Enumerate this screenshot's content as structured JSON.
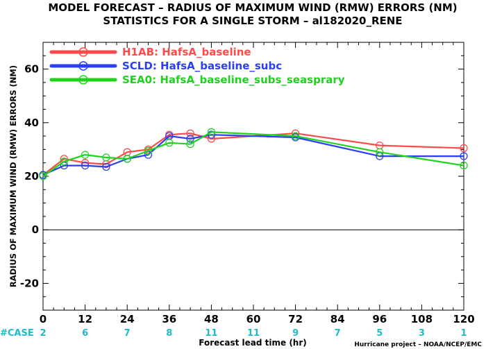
{
  "title_line1": "MODEL FORECAST – RADIUS OF MAXIMUM WIND (RMW) ERRORS (NM)",
  "title_line2": "STATISTICS FOR A SINGLE STORM – al182020_RENE",
  "credit": "Hurricane project – NOAA/NCEP/EMC",
  "case_label": "#CASE",
  "colors": {
    "H1AB": "#ff4a4a",
    "SCLD": "#2a3ff0",
    "SEA0": "#1fd21f",
    "case": "#1bbcc8"
  },
  "chart_data": {
    "type": "line",
    "title": "MODEL FORECAST – RADIUS OF MAXIMUM WIND (RMW) ERRORS (NM)",
    "subtitle": "STATISTICS FOR A SINGLE STORM – al182020_RENE",
    "xlabel": "Forecast lead time (hr)",
    "ylabel": "RADIUS OF MAXIMUM WIND (RMW) ERRORS (NM)",
    "xlim": [
      0,
      120
    ],
    "ylim": [
      -30,
      70
    ],
    "xticks": [
      0,
      12,
      24,
      36,
      48,
      60,
      72,
      84,
      96,
      108,
      120
    ],
    "yticks": [
      -20,
      0,
      20,
      40,
      60
    ],
    "zero_line": true,
    "grid": false,
    "legend_position": "top-left",
    "case_counts": [
      {
        "x": 0,
        "n": "2"
      },
      {
        "x": 12,
        "n": "6"
      },
      {
        "x": 24,
        "n": "7"
      },
      {
        "x": 36,
        "n": "8"
      },
      {
        "x": 48,
        "n": "11"
      },
      {
        "x": 60,
        "n": "11"
      },
      {
        "x": 72,
        "n": "9"
      },
      {
        "x": 84,
        "n": "7"
      },
      {
        "x": 96,
        "n": "5"
      },
      {
        "x": 108,
        "n": "3"
      },
      {
        "x": 120,
        "n": "1"
      }
    ],
    "series": [
      {
        "name": "H1AB",
        "label": "H1AB: HafsA_baseline",
        "color": "#ff4a4a",
        "x": [
          0,
          6,
          12,
          18,
          24,
          30,
          36,
          42,
          48,
          72,
          96,
          120
        ],
        "y": [
          20.5,
          26.5,
          25.0,
          24.5,
          29.0,
          30.0,
          35.5,
          36.0,
          34.0,
          36.0,
          31.5,
          30.5
        ]
      },
      {
        "name": "SCLD",
        "label": "SCLD: HafsA_baseline_subc",
        "color": "#2a3ff0",
        "x": [
          0,
          6,
          12,
          18,
          24,
          30,
          36,
          42,
          48,
          72,
          96,
          120
        ],
        "y": [
          20.5,
          24.0,
          24.0,
          23.5,
          26.5,
          28.0,
          35.0,
          34.0,
          35.5,
          34.5,
          27.5,
          27.5
        ]
      },
      {
        "name": "SEA0",
        "label": "SEA0: HafsA_baseline_subs_seasprary",
        "color": "#1fd21f",
        "x": [
          0,
          6,
          12,
          18,
          24,
          30,
          36,
          42,
          48,
          72,
          96,
          120
        ],
        "y": [
          20.0,
          25.5,
          28.0,
          27.0,
          26.5,
          29.5,
          32.5,
          32.0,
          36.5,
          35.0,
          29.0,
          24.0
        ]
      }
    ]
  }
}
